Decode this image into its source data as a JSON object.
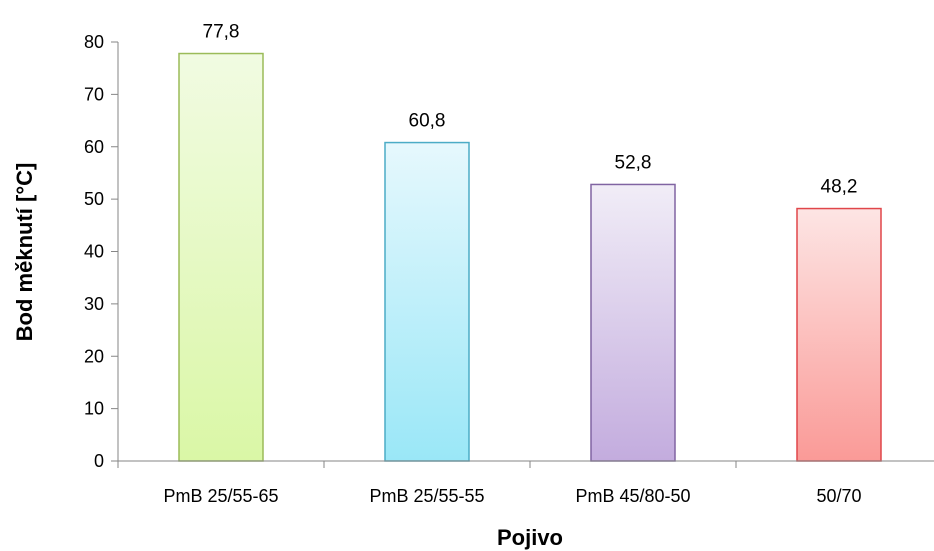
{
  "chart_data": {
    "type": "bar",
    "title": "",
    "xlabel": "Pojivo",
    "ylabel": "Bod měknutí [°C]",
    "categories": [
      "PmB 25/55-65",
      "PmB 25/55-55",
      "PmB 45/80-50",
      "50/70"
    ],
    "values": [
      77.8,
      60.8,
      52.8,
      48.2
    ],
    "value_labels": [
      "77,8",
      "60,8",
      "52,8",
      "48,2"
    ],
    "ylim": [
      0,
      80
    ],
    "yticks": [
      0,
      10,
      20,
      30,
      40,
      50,
      60,
      70,
      80
    ],
    "grid": false,
    "legend": "none",
    "bar_colors": [
      {
        "top": "#f1fbe2",
        "bottom": "#daf7a6",
        "stroke": "#9bbb59"
      },
      {
        "top": "#e6f8fd",
        "bottom": "#9ae7f7",
        "stroke": "#4bacc6"
      },
      {
        "top": "#f1edf7",
        "bottom": "#c3acde",
        "stroke": "#8064a2"
      },
      {
        "top": "#fde5e4",
        "bottom": "#fa9a97",
        "stroke": "#e0464a"
      }
    ]
  }
}
